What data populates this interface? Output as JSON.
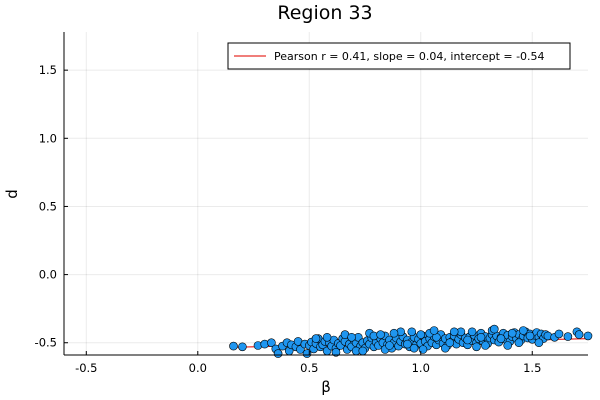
{
  "chart_data": {
    "type": "scatter",
    "title": "Region 33",
    "xlabel": "β",
    "ylabel": "d",
    "xlim": [
      -0.6,
      1.75
    ],
    "ylim": [
      -0.59,
      1.78
    ],
    "xticks": [
      -0.5,
      0.0,
      0.5,
      1.0,
      1.5
    ],
    "xtick_labels": [
      "-0.5",
      "0.0",
      "0.5",
      "1.0",
      "1.5"
    ],
    "yticks": [
      -0.5,
      0.0,
      0.5,
      1.0,
      1.5
    ],
    "ytick_labels": [
      "-0.5",
      "0.0",
      "0.5",
      "1.0",
      "1.5"
    ],
    "grid": true,
    "legend_position": "top-right",
    "point_color": "#1f96f0",
    "line_color": "#e8302a",
    "fit_line": {
      "label": "Pearson r = 0.41, slope = 0.04, intercept = -0.54",
      "slope": 0.04,
      "intercept": -0.54
    },
    "points": [
      [
        0.16,
        -0.525
      ],
      [
        0.2,
        -0.53
      ],
      [
        0.27,
        -0.52
      ],
      [
        0.3,
        -0.51
      ],
      [
        0.33,
        -0.5
      ],
      [
        0.35,
        -0.545
      ],
      [
        0.36,
        -0.58
      ],
      [
        0.38,
        -0.525
      ],
      [
        0.4,
        -0.5
      ],
      [
        0.41,
        -0.56
      ],
      [
        0.42,
        -0.515
      ],
      [
        0.44,
        -0.53
      ],
      [
        0.45,
        -0.49
      ],
      [
        0.46,
        -0.55
      ],
      [
        0.48,
        -0.51
      ],
      [
        0.49,
        -0.58
      ],
      [
        0.5,
        -0.52
      ],
      [
        0.51,
        -0.495
      ],
      [
        0.52,
        -0.545
      ],
      [
        0.53,
        -0.505
      ],
      [
        0.54,
        -0.47
      ],
      [
        0.55,
        -0.53
      ],
      [
        0.56,
        -0.515
      ],
      [
        0.57,
        -0.49
      ],
      [
        0.58,
        -0.56
      ],
      [
        0.59,
        -0.5
      ],
      [
        0.6,
        -0.525
      ],
      [
        0.61,
        -0.48
      ],
      [
        0.62,
        -0.54
      ],
      [
        0.63,
        -0.505
      ],
      [
        0.64,
        -0.52
      ],
      [
        0.65,
        -0.47
      ],
      [
        0.66,
        -0.49
      ],
      [
        0.67,
        -0.55
      ],
      [
        0.68,
        -0.51
      ],
      [
        0.69,
        -0.53
      ],
      [
        0.7,
        -0.48
      ],
      [
        0.71,
        -0.5
      ],
      [
        0.72,
        -0.46
      ],
      [
        0.73,
        -0.525
      ],
      [
        0.74,
        -0.5
      ],
      [
        0.75,
        -0.54
      ],
      [
        0.76,
        -0.485
      ],
      [
        0.77,
        -0.51
      ],
      [
        0.78,
        -0.465
      ],
      [
        0.79,
        -0.53
      ],
      [
        0.8,
        -0.495
      ],
      [
        0.81,
        -0.52
      ],
      [
        0.82,
        -0.47
      ],
      [
        0.83,
        -0.5
      ],
      [
        0.84,
        -0.45
      ],
      [
        0.85,
        -0.515
      ],
      [
        0.86,
        -0.48
      ],
      [
        0.87,
        -0.54
      ],
      [
        0.88,
        -0.5
      ],
      [
        0.89,
        -0.465
      ],
      [
        0.9,
        -0.525
      ],
      [
        0.91,
        -0.49
      ],
      [
        0.92,
        -0.455
      ],
      [
        0.93,
        -0.51
      ],
      [
        0.94,
        -0.48
      ],
      [
        0.95,
        -0.53
      ],
      [
        0.96,
        -0.495
      ],
      [
        0.97,
        -0.46
      ],
      [
        0.98,
        -0.515
      ],
      [
        0.99,
        -0.475
      ],
      [
        1.0,
        -0.505
      ],
      [
        1.01,
        -0.45
      ],
      [
        1.02,
        -0.49
      ],
      [
        1.03,
        -0.525
      ],
      [
        1.04,
        -0.47
      ],
      [
        1.05,
        -0.5
      ],
      [
        1.06,
        -0.455
      ],
      [
        1.07,
        -0.515
      ],
      [
        1.08,
        -0.48
      ],
      [
        1.09,
        -0.44
      ],
      [
        1.1,
        -0.505
      ],
      [
        1.11,
        -0.47
      ],
      [
        1.12,
        -0.52
      ],
      [
        1.13,
        -0.46
      ],
      [
        1.14,
        -0.49
      ],
      [
        1.15,
        -0.45
      ],
      [
        1.16,
        -0.51
      ],
      [
        1.17,
        -0.475
      ],
      [
        1.18,
        -0.44
      ],
      [
        1.19,
        -0.5
      ],
      [
        1.2,
        -0.465
      ],
      [
        1.21,
        -0.515
      ],
      [
        1.22,
        -0.455
      ],
      [
        1.23,
        -0.485
      ],
      [
        1.24,
        -0.445
      ],
      [
        1.25,
        -0.5
      ],
      [
        1.26,
        -0.47
      ],
      [
        1.27,
        -0.43
      ],
      [
        1.28,
        -0.49
      ],
      [
        1.29,
        -0.455
      ],
      [
        1.3,
        -0.505
      ],
      [
        1.31,
        -0.465
      ],
      [
        1.32,
        -0.44
      ],
      [
        1.33,
        -0.48
      ],
      [
        1.34,
        -0.45
      ],
      [
        1.35,
        -0.495
      ],
      [
        1.36,
        -0.46
      ],
      [
        1.37,
        -0.43
      ],
      [
        1.38,
        -0.475
      ],
      [
        1.39,
        -0.445
      ],
      [
        1.4,
        -0.49
      ],
      [
        1.41,
        -0.455
      ],
      [
        1.42,
        -0.425
      ],
      [
        1.43,
        -0.47
      ],
      [
        1.44,
        -0.44
      ],
      [
        1.45,
        -0.48
      ],
      [
        1.46,
        -0.45
      ],
      [
        1.47,
        -0.42
      ],
      [
        1.48,
        -0.465
      ],
      [
        1.49,
        -0.435
      ],
      [
        1.5,
        -0.475
      ],
      [
        1.51,
        -0.445
      ],
      [
        1.52,
        -0.425
      ],
      [
        1.53,
        -0.46
      ],
      [
        1.54,
        -0.435
      ],
      [
        1.55,
        -0.47
      ],
      [
        1.56,
        -0.44
      ],
      [
        1.57,
        -0.45
      ],
      [
        1.6,
        -0.46
      ],
      [
        1.62,
        -0.435
      ],
      [
        1.66,
        -0.455
      ],
      [
        1.7,
        -0.42
      ],
      [
        1.71,
        -0.44
      ],
      [
        1.75,
        -0.45
      ],
      [
        0.58,
        -0.46
      ],
      [
        0.66,
        -0.44
      ],
      [
        0.71,
        -0.56
      ],
      [
        0.77,
        -0.43
      ],
      [
        0.84,
        -0.55
      ],
      [
        0.91,
        -0.42
      ],
      [
        0.97,
        -0.54
      ],
      [
        1.04,
        -0.43
      ],
      [
        1.11,
        -0.54
      ],
      [
        1.18,
        -0.42
      ],
      [
        1.25,
        -0.53
      ],
      [
        1.32,
        -0.41
      ],
      [
        1.39,
        -0.52
      ],
      [
        1.46,
        -0.41
      ],
      [
        1.53,
        -0.5
      ],
      [
        0.62,
        -0.57
      ],
      [
        0.88,
        -0.43
      ],
      [
        1.01,
        -0.55
      ],
      [
        1.15,
        -0.42
      ],
      [
        1.29,
        -0.52
      ],
      [
        0.79,
        -0.45
      ],
      [
        0.94,
        -0.51
      ],
      [
        1.07,
        -0.46
      ],
      [
        1.21,
        -0.48
      ],
      [
        1.36,
        -0.47
      ],
      [
        1.44,
        -0.5
      ],
      [
        0.53,
        -0.47
      ],
      [
        0.69,
        -0.46
      ],
      [
        0.86,
        -0.52
      ],
      [
        1.0,
        -0.44
      ],
      [
        1.13,
        -0.5
      ],
      [
        1.27,
        -0.46
      ],
      [
        1.41,
        -0.43
      ],
      [
        1.49,
        -0.45
      ],
      [
        0.74,
        -0.56
      ],
      [
        1.23,
        -0.42
      ],
      [
        1.33,
        -0.4
      ],
      [
        1.06,
        -0.41
      ],
      [
        0.96,
        -0.42
      ],
      [
        0.82,
        -0.44
      ]
    ]
  }
}
